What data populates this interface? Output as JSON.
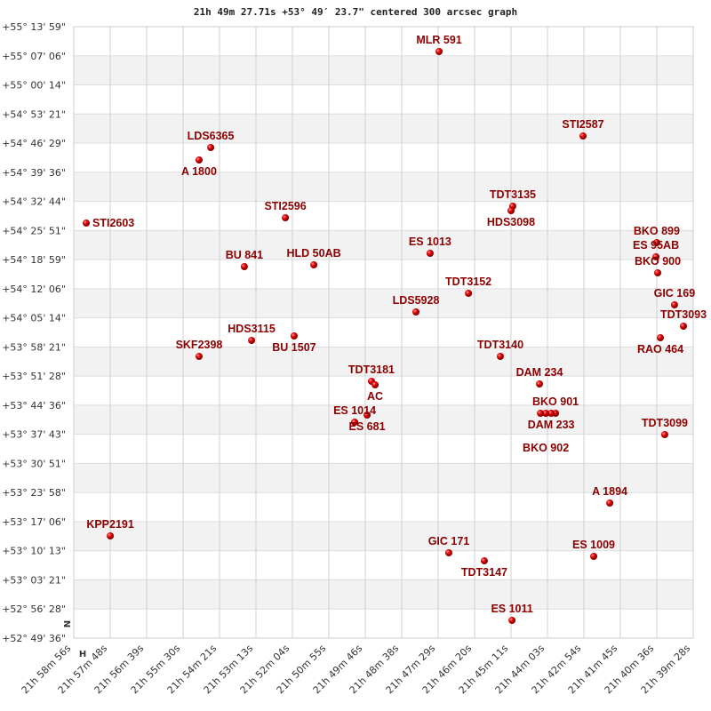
{
  "chart_data": {
    "type": "scatter",
    "title": "21h 49m 27.71s +53° 49′ 23.7\" centered 300 arcsec graph",
    "x_unit": "RA (hours)",
    "y_unit": "Dec (degrees)",
    "x_reversed": true,
    "xlim": [
      21.98222,
      21.65778
    ],
    "ylim": [
      52.82667,
      55.23306
    ],
    "grid": true,
    "alternating_row_bands": true,
    "x_ticks": [
      "21h 58m 56s",
      "21h 57m 48s",
      "21h 56m 39s",
      "21h 55m 30s",
      "21h 54m 21s",
      "21h 53m 13s",
      "21h 52m 04s",
      "21h 50m 55s",
      "21h 49m 46s",
      "21h 48m 38s",
      "21h 47m 29s",
      "21h 46m 20s",
      "21h 45m 11s",
      "21h 44m 03s",
      "21h 42m 54s",
      "21h 41m 45s",
      "21h 40m 36s",
      "21h 39m 28s"
    ],
    "y_ticks": [
      "+55° 13' 59\"",
      "+55° 07' 06\"",
      "+55° 00' 14\"",
      "+54° 53' 21\"",
      "+54° 46' 29\"",
      "+54° 39' 36\"",
      "+54° 32' 44\"",
      "+54° 25' 51\"",
      "+54° 18' 59\"",
      "+54° 12' 06\"",
      "+54° 05' 14\"",
      "+53° 58' 21\"",
      "+53° 51' 28\"",
      "+53° 44' 36\"",
      "+53° 37' 43\"",
      "+53° 30' 51\"",
      "+53° 23' 58\"",
      "+53° 17' 06\"",
      "+53° 10' 13\"",
      "+53° 03' 21\"",
      "+52° 56' 28\"",
      "+52° 49' 36\""
    ],
    "orientation_marks": {
      "north": "N",
      "east": "H"
    },
    "points": [
      {
        "label": "MLR 591",
        "ra": 21.7909,
        "dec": 55.1351
      },
      {
        "label": "LDS6365",
        "ra": 21.9105,
        "dec": 54.7574
      },
      {
        "label": "A  1800",
        "ra": 21.9166,
        "dec": 54.7084
      },
      {
        "label": "STI2587",
        "ra": 21.7155,
        "dec": 54.8028
      },
      {
        "label": "STI2603",
        "ra": 21.9757,
        "dec": 54.4601
      },
      {
        "label": "STI2596",
        "ra": 21.8714,
        "dec": 54.4811
      },
      {
        "label": "TDT3135",
        "ra": 21.7523,
        "dec": 54.5265
      },
      {
        "label": "HDS3098",
        "ra": 21.7532,
        "dec": 54.509
      },
      {
        "label": "BKO 899",
        "ra": 21.6769,
        "dec": 54.3831
      },
      {
        "label": "ES   95AB",
        "ra": 21.6773,
        "dec": 54.3272
      },
      {
        "label": "BKO 900",
        "ra": 21.6764,
        "dec": 54.2642
      },
      {
        "label": "ES 1013",
        "ra": 21.7956,
        "dec": 54.3412
      },
      {
        "label": "BU  841",
        "ra": 21.8929,
        "dec": 54.2887
      },
      {
        "label": "HLD  50AB",
        "ra": 21.8565,
        "dec": 54.2957
      },
      {
        "label": "TDT3152",
        "ra": 21.7755,
        "dec": 54.1838
      },
      {
        "label": "GIC 169",
        "ra": 21.6676,
        "dec": 54.1383
      },
      {
        "label": "TDT3093",
        "ra": 21.6629,
        "dec": 54.0543
      },
      {
        "label": "RAO 464",
        "ra": 21.675,
        "dec": 54.0089
      },
      {
        "label": "LDS5928",
        "ra": 21.803,
        "dec": 54.1103
      },
      {
        "label": "HDS3115",
        "ra": 21.8891,
        "dec": 53.9984
      },
      {
        "label": "BU 1507",
        "ra": 21.8668,
        "dec": 54.0159
      },
      {
        "label": "SKF2398",
        "ra": 21.9166,
        "dec": 53.9354
      },
      {
        "label": "TDT3140",
        "ra": 21.7588,
        "dec": 53.9354
      },
      {
        "label": "TDT3181",
        "ra": 21.8263,
        "dec": 53.8375
      },
      {
        "label": "AC",
        "ra": 21.8244,
        "dec": 53.8235
      },
      {
        "label": "DAM 234",
        "ra": 21.7383,
        "dec": 53.827
      },
      {
        "label": "BKO 901",
        "ra": 21.7299,
        "dec": 53.7116
      },
      {
        "label": "DAM 233",
        "ra": 21.7322,
        "dec": 53.7116
      },
      {
        "label": "BKO 902",
        "ra": 21.735,
        "dec": 53.7116
      },
      {
        "label": "",
        "ra": 21.7378,
        "dec": 53.7116
      },
      {
        "label": "ES  681",
        "ra": 21.8286,
        "dec": 53.7046
      },
      {
        "label": "ES 1014",
        "ra": 21.8351,
        "dec": 53.6766
      },
      {
        "label": "TDT3099",
        "ra": 21.6727,
        "dec": 53.6276
      },
      {
        "label": "A  1894",
        "ra": 21.7015,
        "dec": 53.3583
      },
      {
        "label": "KPP2191",
        "ra": 21.9631,
        "dec": 53.2289
      },
      {
        "label": "GIC 171",
        "ra": 21.7858,
        "dec": 53.1624
      },
      {
        "label": "TDT3147",
        "ra": 21.7672,
        "dec": 53.1309
      },
      {
        "label": "ES 1009",
        "ra": 21.7099,
        "dec": 53.1484
      },
      {
        "label": "ES 1011",
        "ra": 21.7527,
        "dec": 52.8966
      }
    ],
    "colors": {
      "point": "#e00000",
      "label": "#8b0000",
      "band": "#f2f2f2",
      "grid": "#d0d0d0"
    }
  }
}
